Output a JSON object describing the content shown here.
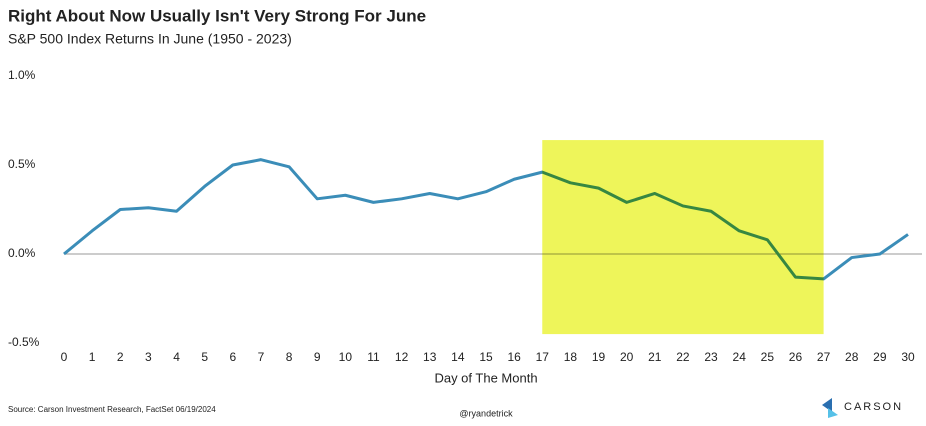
{
  "chart_data": {
    "type": "line",
    "title": "Right About Now Usually Isn't Very Strong For June",
    "subtitle": "S&P 500 Index Returns In June (1950 - 2023)",
    "x_label": "Day of The Month",
    "x": [
      0,
      1,
      2,
      3,
      4,
      5,
      6,
      7,
      8,
      9,
      10,
      11,
      12,
      13,
      14,
      15,
      16,
      17,
      18,
      19,
      20,
      21,
      22,
      23,
      24,
      25,
      26,
      27,
      28,
      29,
      30
    ],
    "series": [
      {
        "name": "S&P 500 Index Returns In June",
        "color": "#3b8db8",
        "values": [
          0,
          0.13,
          0.25,
          0.26,
          0.24,
          0.38,
          0.5,
          0.53,
          0.49,
          0.31,
          0.33,
          0.29,
          0.31,
          0.34,
          0.31,
          0.35,
          0.42,
          0.46,
          0.4,
          0.37,
          0.29,
          0.34,
          0.27,
          0.24,
          0.13,
          0.08,
          -0.13,
          -0.14,
          -0.02,
          0,
          0.11
        ]
      }
    ],
    "xlim": [
      0,
      30
    ],
    "xticks": [
      0,
      1,
      2,
      3,
      4,
      5,
      6,
      7,
      8,
      9,
      10,
      11,
      12,
      13,
      14,
      15,
      16,
      17,
      18,
      19,
      20,
      21,
      22,
      23,
      24,
      25,
      26,
      27,
      28,
      29,
      30
    ],
    "ylim": [
      -0.5,
      1.0
    ],
    "yticks": [
      {
        "value": -0.5,
        "label": "-0.5%"
      },
      {
        "value": 0,
        "label": "0.0%"
      },
      {
        "value": 0.5,
        "label": "0.5%"
      },
      {
        "value": 1.0,
        "label": "1.0%"
      }
    ],
    "reference_line": 0,
    "highlight": {
      "xlim": [
        17,
        27
      ],
      "ylim": [
        -0.45,
        0.64
      ],
      "color": "#eef55a"
    },
    "grid": false
  },
  "footer": {
    "source": "Source: Carson Investment Research, FactSet 06/19/2024",
    "handle": "@ryandetrick",
    "brand": "CARSON"
  }
}
